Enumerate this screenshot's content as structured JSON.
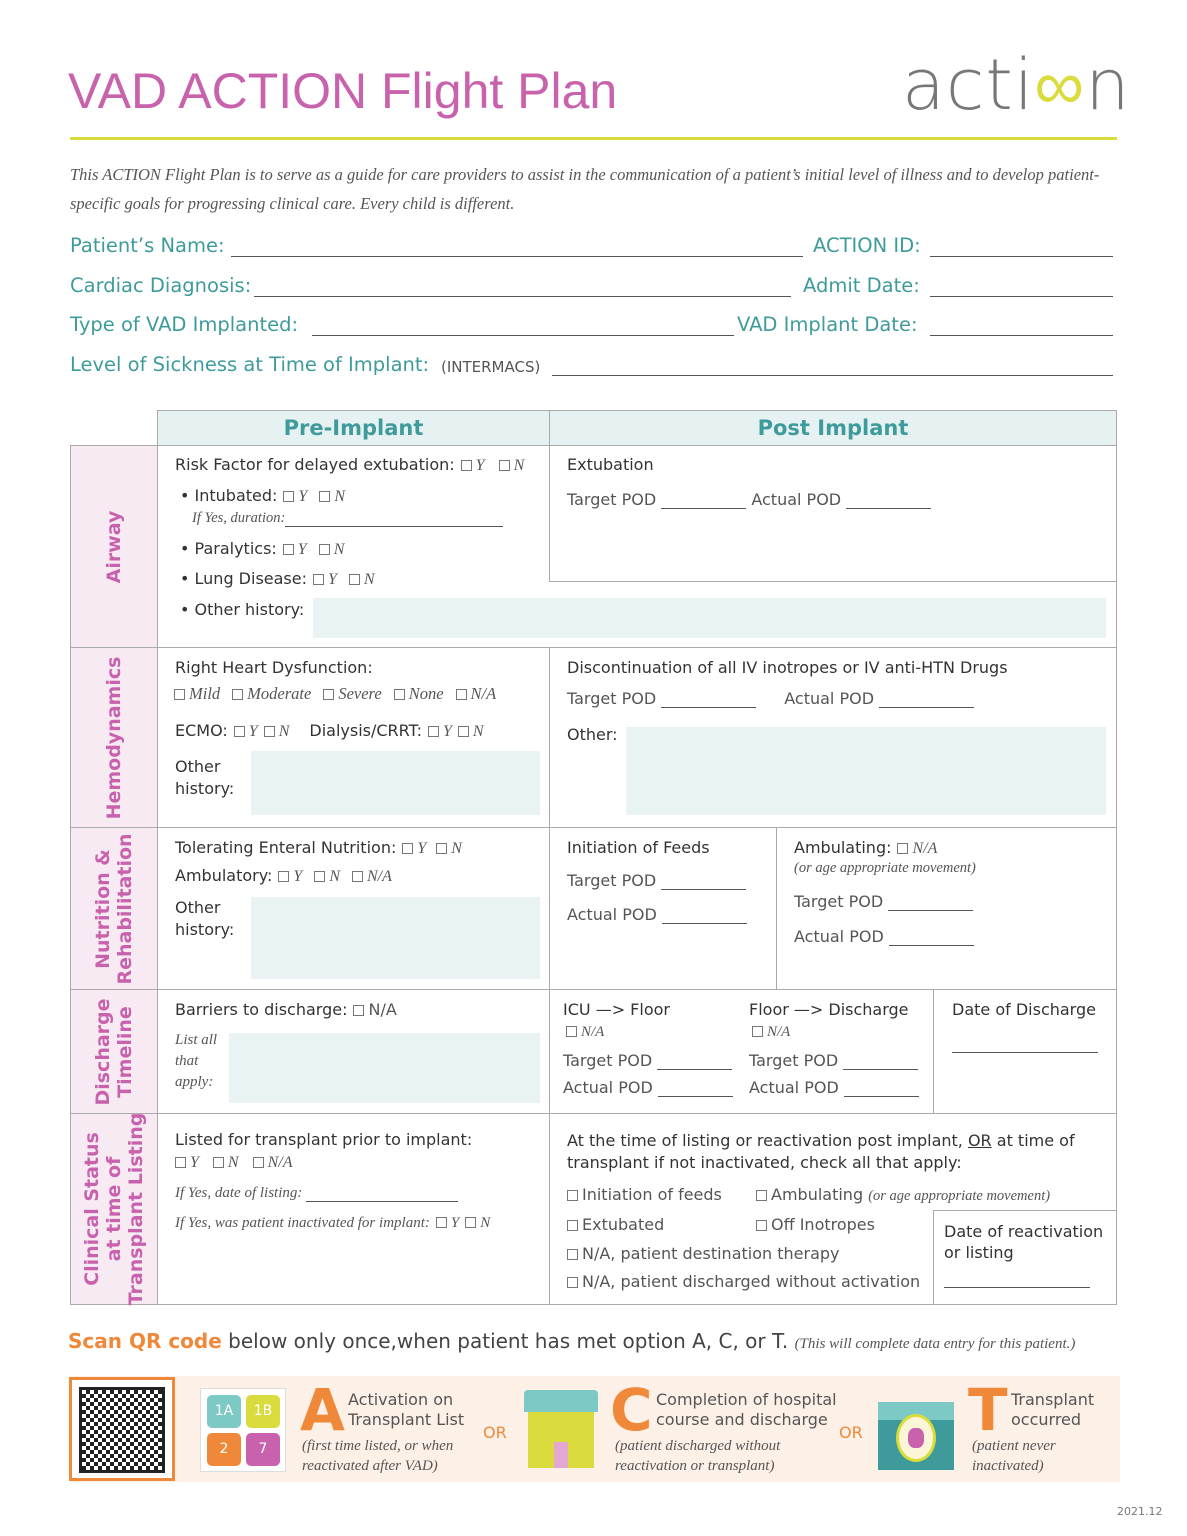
{
  "title": "VAD ACTION Flight Plan",
  "logo_text": "action",
  "intro": "This ACTION Flight Plan is to serve as a guide for care providers to assist in the communication of a patient’s initial level of illness and to develop patient-specific goals for progressing clinical care. Every child is different.",
  "fields": {
    "name": "Patient’s Name:",
    "action_id": "ACTION ID:",
    "diagnosis": "Cardiac Diagnosis:",
    "admit": "Admit Date:",
    "vad_type": "Type of VAD Implanted:",
    "implant_date": "VAD Implant Date:",
    "sickness": "Level of Sickness at Time of Implant:",
    "intermacs": "(INTERMACS)"
  },
  "headers": {
    "pre": "Pre-Implant",
    "post": "Post Implant"
  },
  "sides": {
    "airway": "Airway",
    "hemo": "Hemodynamics",
    "nutr1": "Nutrition &",
    "nutr2": "Rehabilitation",
    "dis1": "Discharge",
    "dis2": "Timeline",
    "cs1": "Clinical Status",
    "cs2": "at time of",
    "cs3": "Transplant Listing"
  },
  "opts": {
    "y": "Y",
    "n": "N",
    "na": "N/A",
    "mild": "Mild",
    "moderate": "Moderate",
    "severe": "Severe",
    "none": "None"
  },
  "airway": {
    "risk": "Risk Factor for delayed extubation:",
    "intubated": "• Intubated:",
    "duration": "If Yes, duration:",
    "paralytics": "• Paralytics:",
    "lung": "• Lung Disease:",
    "other": "• Other history:",
    "extubation": "Extubation",
    "target": "Target POD",
    "actual": "Actual  POD"
  },
  "hemo": {
    "rhd": "Right Heart Dysfunction:",
    "ecmo": "ECMO:",
    "dialysis": "Dialysis/CRRT:",
    "other1": "Other",
    "other2": "history:",
    "disc": "Discontinuation of all IV inotropes or IV anti-HTN Drugs",
    "target": "Target POD",
    "actual": "Actual POD",
    "post_other": "Other:"
  },
  "nutr": {
    "enteral": "Tolerating Enteral Nutrition:",
    "ambulatory": "Ambulatory:",
    "other1": "Other",
    "other2": "history:",
    "feeds": "Initiation of Feeds",
    "target": "Target POD",
    "actual": "Actual  POD",
    "ambulating": "Ambulating:",
    "age": "(or age appropriate movement)"
  },
  "dis": {
    "barriers": "Barriers to discharge:",
    "list1": "List all",
    "list2": "that",
    "list3": "apply:",
    "icu": "ICU —> Floor",
    "floor": "Floor —> Discharge",
    "target": "Target POD",
    "actual": "Actual POD",
    "date": "Date of Discharge"
  },
  "cs": {
    "listed": "Listed for transplant prior to implant:",
    "date_listing": "If Yes, date of listing:",
    "inactivated": "If Yes, was patient inactivated for implant:",
    "post1a": "At the time of listing or reactivation post implant, ",
    "or": "OR",
    "post1b": " at time of",
    "post2": "transplant if not inactivated, check all that apply:",
    "feeds": "Initiation of feeds",
    "ambulating": "Ambulating",
    "amb_note": "(or age appropriate movement)",
    "extubated": "Extubated",
    "off_inotropes": "Off Inotropes",
    "dest": "N/A, patient destination therapy",
    "discharged": "N/A, patient discharged without activation",
    "react1": "Date of reactivation",
    "react2": "or listing"
  },
  "scan": {
    "bold": "Scan QR code",
    "text": " below only once,when patient has met option A, C, or T.",
    "note": "(This will complete data entry for this patient.)"
  },
  "options": {
    "tiles": [
      "1A",
      "1B",
      "2",
      "7"
    ],
    "a": {
      "letter": "A",
      "l1": "Activation on",
      "l2": "Transplant List",
      "n1": "(first time listed, or when",
      "n2": "reactivated after VAD)"
    },
    "or": "OR",
    "c": {
      "letter": "C",
      "l1": "Completion of hospital",
      "l2": "course and discharge",
      "n1": "(patient discharged without",
      "n2": "reactivation or transplant)"
    },
    "t": {
      "letter": "T",
      "l1": "Transplant",
      "l2": "occurred",
      "n1": "(patient never",
      "n2": "inactivated)"
    }
  },
  "version": "2021.12",
  "colors": {
    "pink": "#c862ad",
    "teal": "#3f9b9b",
    "yellow": "#d9dc3c",
    "orange": "#f0883a"
  }
}
